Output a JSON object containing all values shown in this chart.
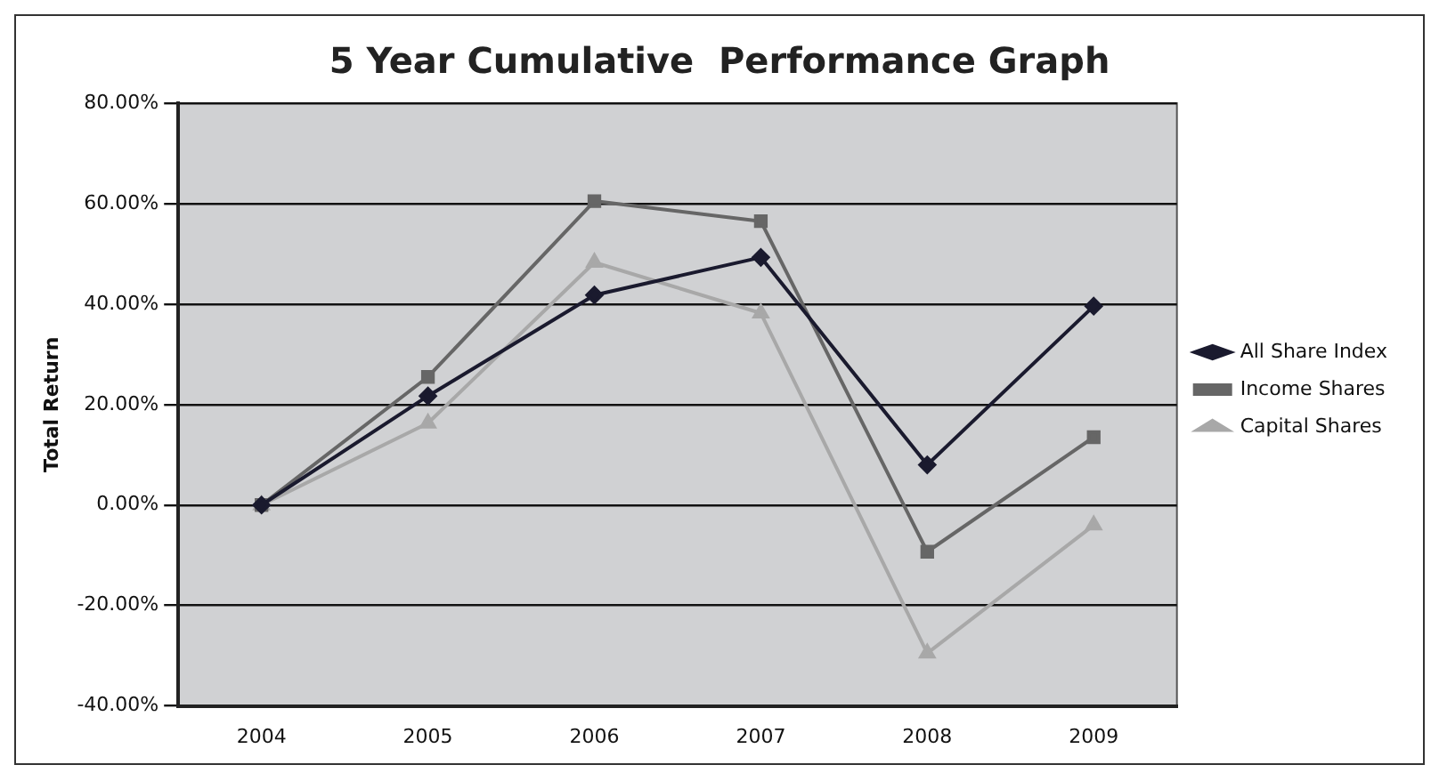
{
  "chart_data": {
    "type": "line",
    "title": "5 Year Cumulative  Performance Graph",
    "ylabel": "Total Return",
    "categories": [
      "2004",
      "2005",
      "2006",
      "2007",
      "2008",
      "2009"
    ],
    "series": [
      {
        "name": "All Share Index",
        "color": "#1a1a2e",
        "marker": "diamond",
        "values": [
          0,
          21.7,
          41.8,
          49.3,
          8,
          39.6
        ]
      },
      {
        "name": "Income Shares",
        "color": "#666666",
        "marker": "square",
        "values": [
          0,
          25.5,
          60.5,
          56.5,
          -9.3,
          13.5
        ]
      },
      {
        "name": "Capital Shares",
        "color": "#a8a8a8",
        "marker": "triangle",
        "values": [
          0,
          16.3,
          48.3,
          38.2,
          -29.5,
          -4
        ]
      }
    ],
    "ylim": [
      -40,
      80
    ],
    "yticks": [
      {
        "value": -40,
        "label": "-40.00%"
      },
      {
        "value": -20,
        "label": "-20.00%"
      },
      {
        "value": 0,
        "label": "0.00%"
      },
      {
        "value": 20,
        "label": "20.00%"
      },
      {
        "value": 40,
        "label": "40.00%"
      },
      {
        "value": 60,
        "label": "60.00%"
      },
      {
        "value": 80,
        "label": "80.00%"
      }
    ],
    "grid": "y",
    "legend": "right",
    "line_style": "solid"
  }
}
